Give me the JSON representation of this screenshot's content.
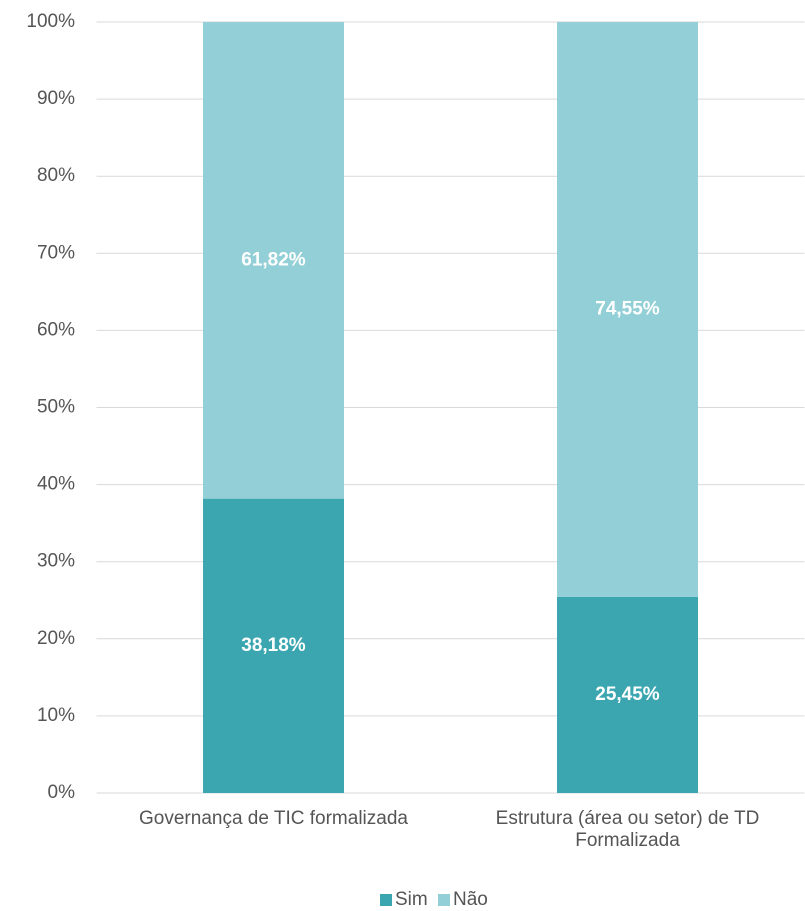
{
  "chart_data": {
    "type": "stacked_bar",
    "categories": [
      "Governança de TIC formalizada",
      "Estrutura (área ou setor) de TD Formalizada"
    ],
    "series": [
      {
        "name": "Sim",
        "color": "#3ba6b0",
        "values": [
          38.18,
          25.45
        ],
        "value_labels": [
          "38,18%",
          "25,45%"
        ]
      },
      {
        "name": "Não",
        "color": "#93cfd6",
        "values": [
          61.82,
          74.55
        ],
        "value_labels": [
          "61,82%",
          "74,55%"
        ]
      }
    ],
    "ylim": [
      0,
      100
    ],
    "yticks": [
      {
        "value": 0,
        "label": "0%"
      },
      {
        "value": 10,
        "label": "10%"
      },
      {
        "value": 20,
        "label": "20%"
      },
      {
        "value": 30,
        "label": "30%"
      },
      {
        "value": 40,
        "label": "40%"
      },
      {
        "value": 50,
        "label": "50%"
      },
      {
        "value": 60,
        "label": "60%"
      },
      {
        "value": 70,
        "label": "70%"
      },
      {
        "value": 80,
        "label": "80%"
      },
      {
        "value": 90,
        "label": "90%"
      },
      {
        "value": 100,
        "label": "100%"
      }
    ],
    "grid": true,
    "legend": "bottom"
  }
}
